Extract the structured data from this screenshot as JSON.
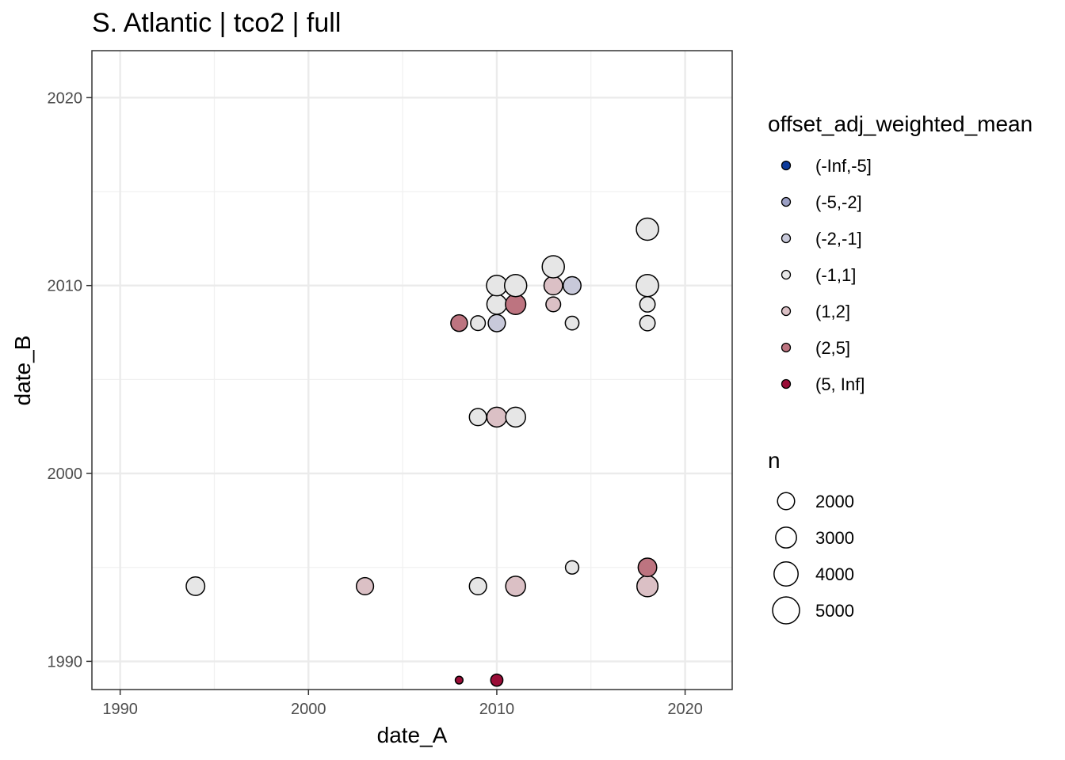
{
  "chart_data": {
    "type": "scatter",
    "title": "S. Atlantic | tco2 | full",
    "xlabel": "date_A",
    "ylabel": "date_B",
    "xlim": [
      1988.5,
      2022.5
    ],
    "ylim": [
      1988.5,
      2022.5
    ],
    "x_ticks": [
      1990,
      2000,
      2010,
      2020
    ],
    "y_ticks": [
      1990,
      2000,
      2010,
      2020
    ],
    "grid": true,
    "legend_position": "right",
    "color_legend": {
      "title": "offset_adj_weighted_mean",
      "entries": [
        {
          "label": "(-Inf,-5]",
          "color": "#0d3b9c"
        },
        {
          "label": "(-5,-2]",
          "color": "#9b9fc4"
        },
        {
          "label": "(-2,-1]",
          "color": "#c8c9da"
        },
        {
          "label": "(-1,1]",
          "color": "#e6e6e6"
        },
        {
          "label": "(1,2]",
          "color": "#dbc0c5"
        },
        {
          "label": "(2,5]",
          "color": "#bd7480"
        },
        {
          "label": "(5, Inf]",
          "color": "#9a0d37"
        }
      ]
    },
    "size_legend": {
      "title": "n",
      "entries": [
        {
          "label": "2000",
          "value": 2000
        },
        {
          "label": "3000",
          "value": 3000
        },
        {
          "label": "4000",
          "value": 4000
        },
        {
          "label": "5000",
          "value": 5000
        }
      ]
    },
    "points": [
      {
        "x": 1994,
        "y": 1994,
        "n": 3500,
        "bin": "(-1,1]"
      },
      {
        "x": 2003,
        "y": 1994,
        "n": 3000,
        "bin": "(1,2]"
      },
      {
        "x": 2009,
        "y": 1994,
        "n": 3000,
        "bin": "(-1,1]"
      },
      {
        "x": 2011,
        "y": 1994,
        "n": 4000,
        "bin": "(1,2]"
      },
      {
        "x": 2018,
        "y": 1994,
        "n": 4500,
        "bin": "(1,2]"
      },
      {
        "x": 2014,
        "y": 1995,
        "n": 1800,
        "bin": "(-1,1]"
      },
      {
        "x": 2018,
        "y": 1995,
        "n": 3500,
        "bin": "(2,5]"
      },
      {
        "x": 2008,
        "y": 1989,
        "n": 600,
        "bin": "(5, Inf]"
      },
      {
        "x": 2010,
        "y": 1989,
        "n": 1500,
        "bin": "(5, Inf]"
      },
      {
        "x": 2009,
        "y": 2003,
        "n": 3000,
        "bin": "(-1,1]"
      },
      {
        "x": 2010,
        "y": 2003,
        "n": 4000,
        "bin": "(1,2]"
      },
      {
        "x": 2011,
        "y": 2003,
        "n": 4000,
        "bin": "(-1,1]"
      },
      {
        "x": 2008,
        "y": 2008,
        "n": 2800,
        "bin": "(2,5]"
      },
      {
        "x": 2009,
        "y": 2008,
        "n": 2200,
        "bin": "(-1,1]"
      },
      {
        "x": 2010,
        "y": 2008,
        "n": 3000,
        "bin": "(-2,-1]"
      },
      {
        "x": 2014,
        "y": 2008,
        "n": 1900,
        "bin": "(-1,1]"
      },
      {
        "x": 2018,
        "y": 2008,
        "n": 2400,
        "bin": "(-1,1]"
      },
      {
        "x": 2010,
        "y": 2009,
        "n": 4000,
        "bin": "(-1,1]"
      },
      {
        "x": 2011,
        "y": 2009,
        "n": 4200,
        "bin": "(2,5]"
      },
      {
        "x": 2013,
        "y": 2009,
        "n": 2200,
        "bin": "(1,2]"
      },
      {
        "x": 2018,
        "y": 2009,
        "n": 2400,
        "bin": "(-1,1]"
      },
      {
        "x": 2010,
        "y": 2010,
        "n": 4300,
        "bin": "(-1,1]"
      },
      {
        "x": 2011,
        "y": 2010,
        "n": 5000,
        "bin": "(-1,1]"
      },
      {
        "x": 2013,
        "y": 2010,
        "n": 3500,
        "bin": "(1,2]"
      },
      {
        "x": 2014,
        "y": 2010,
        "n": 3200,
        "bin": "(-2,-1]"
      },
      {
        "x": 2018,
        "y": 2010,
        "n": 5000,
        "bin": "(-1,1]"
      },
      {
        "x": 2013,
        "y": 2011,
        "n": 5000,
        "bin": "(-1,1]"
      },
      {
        "x": 2018,
        "y": 2013,
        "n": 5000,
        "bin": "(-1,1]"
      }
    ]
  }
}
